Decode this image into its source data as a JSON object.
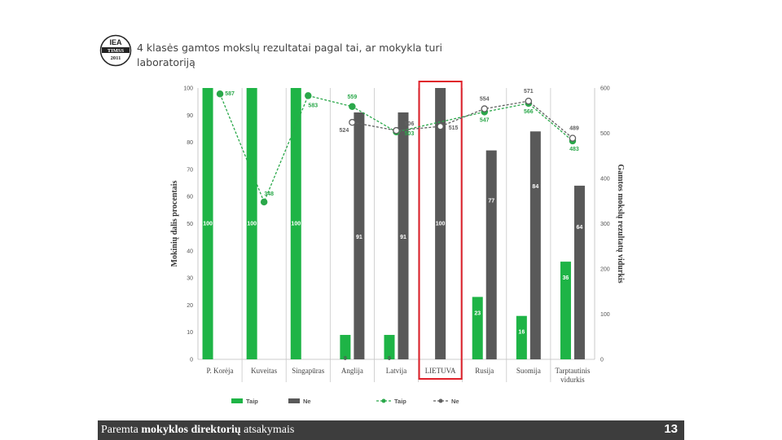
{
  "slide": {
    "title": "4 klasės gamtos mokslų rezultatai pagal tai, ar mokykla turi laboratoriją",
    "footer_prefix": "Paremta ",
    "footer_bold": "mokyklos direktorių",
    "footer_suffix": " atsakymais",
    "page_number": "13",
    "logo_text_top": "IEA",
    "logo_text_mid": "TIMSS",
    "logo_text_bottom": "2011"
  },
  "colors": {
    "taip": "#1eb446",
    "ne": "#595959",
    "highlight": "#e0202a",
    "line_taip": "#2aa84a",
    "line_ne": "#606060"
  },
  "chart_data": {
    "type": "bar",
    "categories": [
      "P. Korėja",
      "Kuveitas",
      "Singapūras",
      "Anglija",
      "Latvija",
      "LIETUVA",
      "Rusija",
      "Suomija",
      "Tarptautinis vidurkis"
    ],
    "highlight_category": "LIETUVA",
    "ylabel": "Mokinių dalis procentais",
    "y2label": "Gamtos mokslų rezultatų vidurkis",
    "ylim": [
      0,
      100
    ],
    "yticks": [
      0,
      10,
      20,
      30,
      40,
      50,
      60,
      70,
      80,
      90,
      100
    ],
    "y2lim": [
      0,
      600
    ],
    "y2ticks": [
      0,
      100,
      200,
      300,
      400,
      500,
      600
    ],
    "series": [
      {
        "name": "Taip",
        "kind": "bar",
        "values": [
          100,
          100,
          100,
          9,
          9,
          null,
          23,
          16,
          36
        ],
        "labels": [
          "100",
          "100",
          "100",
          "9",
          "9",
          "",
          "23",
          "16",
          "36"
        ]
      },
      {
        "name": "Ne",
        "kind": "bar",
        "values": [
          null,
          null,
          null,
          91,
          91,
          100,
          77,
          84,
          64
        ],
        "labels": [
          "",
          "",
          "",
          "91",
          "91",
          "100",
          "77",
          "84",
          "64"
        ]
      },
      {
        "name": "Taip",
        "kind": "line",
        "values": [
          587,
          348,
          583,
          559,
          503,
          null,
          547,
          566,
          483
        ],
        "labels": [
          "587",
          "348",
          "583",
          "559",
          "503",
          "",
          "547",
          "566",
          "483"
        ]
      },
      {
        "name": "Ne",
        "kind": "line",
        "values": [
          null,
          null,
          null,
          524,
          506,
          515,
          554,
          571,
          489
        ],
        "labels": [
          "",
          "",
          "",
          "524",
          "506",
          "515",
          "554",
          "571",
          "489"
        ]
      }
    ],
    "legend": [
      "Taip",
      "Ne",
      "Taip",
      "Ne"
    ],
    "legend_position": "bottom",
    "grid": false
  }
}
